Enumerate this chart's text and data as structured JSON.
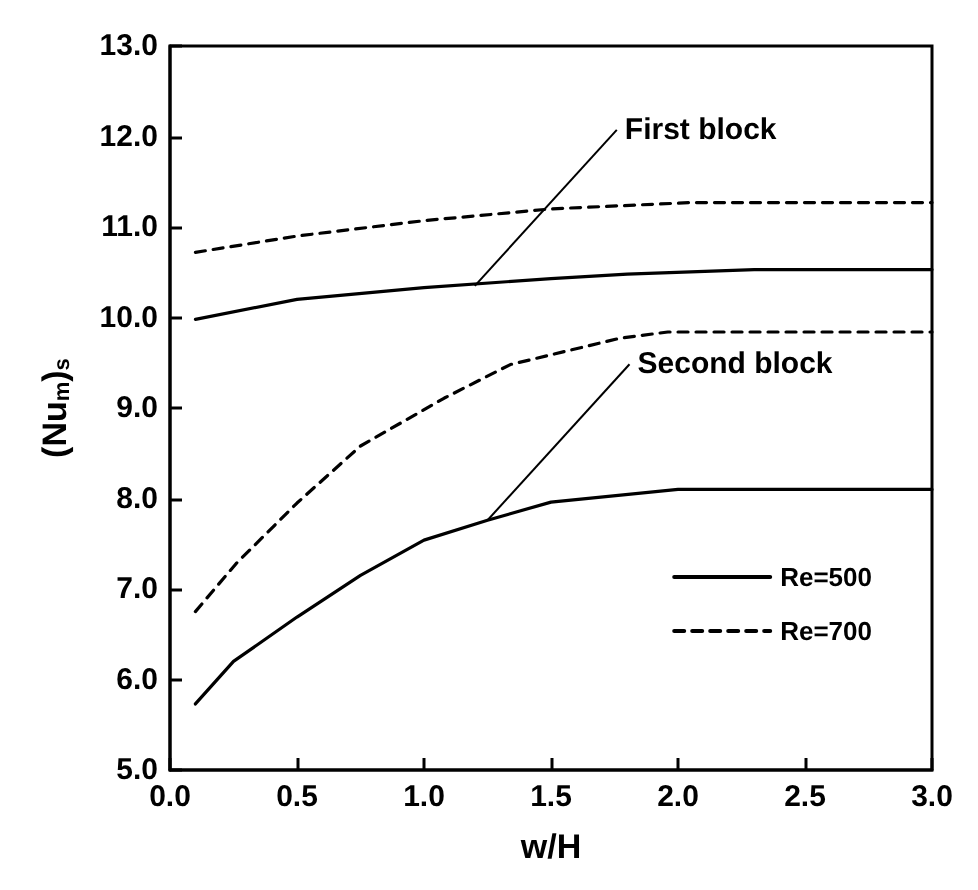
{
  "chart_data": {
    "type": "line",
    "xlabel": "w/H",
    "ylabel": "(Nu$_{m}$)$_{s}$",
    "xlim": [
      0,
      3
    ],
    "ylim": [
      5,
      13
    ],
    "xticks": [
      {
        "value": 0,
        "label": "0.0"
      },
      {
        "value": 0.5,
        "label": "0.5"
      },
      {
        "value": 1,
        "label": "1.0"
      },
      {
        "value": 1.5,
        "label": "1.5"
      },
      {
        "value": 2,
        "label": "2.0"
      },
      {
        "value": 2.5,
        "label": "2.5"
      },
      {
        "value": 3,
        "label": "3.0"
      }
    ],
    "yticks": [
      {
        "value": 5,
        "label": "5.0"
      },
      {
        "value": 6,
        "label": "6.0"
      },
      {
        "value": 7,
        "label": "7.0"
      },
      {
        "value": 8,
        "label": "8.0"
      },
      {
        "value": 9,
        "label": "9.0"
      },
      {
        "value": 10,
        "label": "10.0"
      },
      {
        "value": 11,
        "label": "11.0"
      },
      {
        "value": 12,
        "label": "12.0"
      },
      {
        "value": 13,
        "label": "13.0"
      }
    ],
    "grid": false,
    "legend": "bottom right",
    "marker": "none",
    "series": [
      {
        "name": "Re=500",
        "color": "#000000",
        "line_style": "solid",
        "x": [
          0.1,
          0.5,
          1.0,
          1.5,
          1.8,
          2.3,
          3.0
        ],
        "values": [
          9.98,
          10.2,
          10.33,
          10.43,
          10.48,
          10.53,
          10.53
        ]
      },
      {
        "name": "Re=700",
        "color": "#000000",
        "line_style": "dashed",
        "x": [
          0.1,
          0.5,
          1.0,
          1.5,
          2.05,
          2.5,
          3.0
        ],
        "values": [
          10.72,
          10.9,
          11.07,
          11.2,
          11.27,
          11.27,
          11.27
        ]
      },
      {
        "color": "#000000",
        "line_style": "solid",
        "x": [
          0.1,
          0.25,
          0.5,
          0.75,
          1.0,
          1.25,
          1.5,
          2.0,
          2.5,
          3.0
        ],
        "values": [
          5.73,
          6.2,
          6.69,
          7.15,
          7.54,
          7.76,
          7.96,
          8.1,
          8.1,
          8.1
        ]
      },
      {
        "color": "#000000",
        "line_style": "dashed",
        "x": [
          0.1,
          0.26,
          0.5,
          0.75,
          1.08,
          1.34,
          1.77,
          1.96,
          2.5,
          3.0
        ],
        "values": [
          6.75,
          7.28,
          7.95,
          8.58,
          9.11,
          9.48,
          9.77,
          9.84,
          9.84,
          9.84
        ]
      }
    ],
    "annotations": [
      {
        "text": "First block",
        "x": 1.2,
        "y": 10.35
      },
      {
        "text": "Second block",
        "x": 1.25,
        "y": 7.76
      }
    ]
  }
}
